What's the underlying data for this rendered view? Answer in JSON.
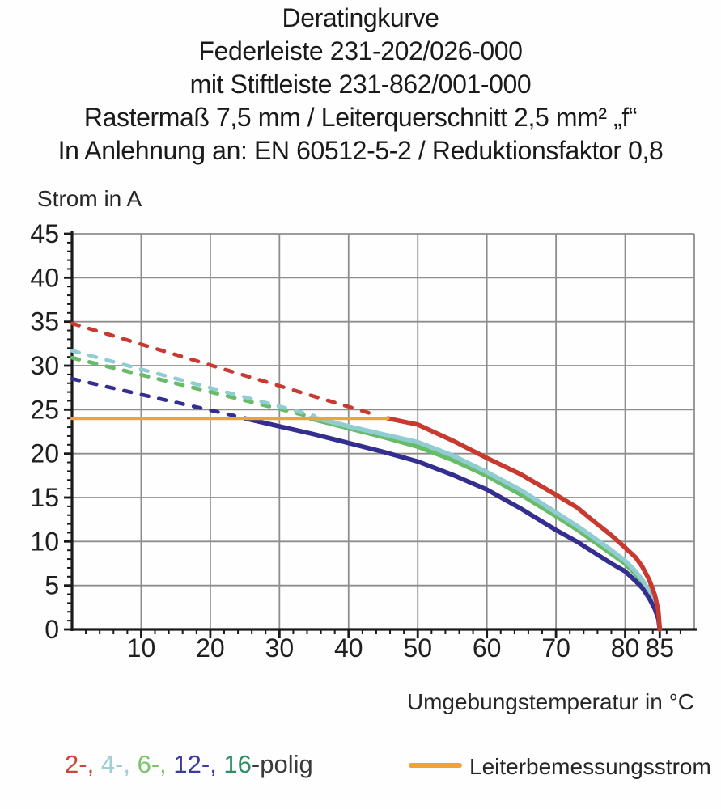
{
  "header": {
    "lines": [
      "Deratingkurve",
      "Federleiste 231-202/026-000",
      "mit Stiftleiste 231-862/001-000",
      "Rastermaß 7,5 mm / Leiterquerschnitt 2,5 mm² „f“",
      "In Anlehnung an: EN 60512-5-2 / Reduktionsfaktor 0,8"
    ]
  },
  "legend": {
    "poles_segments": [
      {
        "text": "2-,",
        "color": "#C8473C"
      },
      {
        "text": " 4-,",
        "color": "#9DD0CE"
      },
      {
        "text": " 6-,",
        "color": "#7CC36B"
      },
      {
        "text": " 12-,",
        "color": "#3B3A9E"
      },
      {
        "text": " 16",
        "color": "#2E8F63"
      },
      {
        "text": "-polig",
        "color": "#3A3A3A"
      }
    ],
    "rated_current_label": "Leiterbemessungsstrom",
    "rated_current_color": "#F0A236"
  },
  "colors": {
    "grid": "#8E8E8E",
    "axis": "#1a1a1a",
    "tick_label": "#1f1f1f"
  },
  "chart_data": {
    "type": "line",
    "title": "Deratingkurve",
    "xlabel": "Umgebungstemperatur in °C",
    "ylabel": "Strom in A",
    "xlim": [
      0,
      90
    ],
    "ylim": [
      0,
      45
    ],
    "grid": true,
    "legend_position": "bottom",
    "x_gridlines": [
      10,
      20,
      30,
      40,
      50,
      60,
      70,
      80,
      90
    ],
    "y_gridlines": [
      5,
      10,
      15,
      20,
      25,
      30,
      35,
      40,
      45
    ],
    "x_tick_labels": [
      10,
      20,
      30,
      40,
      50,
      60,
      70,
      80,
      85
    ],
    "y_tick_labels": [
      45,
      40,
      35,
      30,
      25,
      20,
      15,
      10,
      5,
      0
    ],
    "x_minor_step": 2,
    "y_minor_step": 1,
    "rated_current_line": {
      "label": "Leiterbemessungsstrom",
      "value_a": 24,
      "x_start": 0,
      "x_end": 45.7,
      "color": "#F0A236"
    },
    "series": [
      {
        "name": "2-polig",
        "color": "#C8392F",
        "dashed_points": [
          [
            0,
            34.8
          ],
          [
            43.5,
            24.5
          ]
        ],
        "solid_points": [
          [
            45.7,
            24
          ],
          [
            50,
            23.3
          ],
          [
            55,
            21.5
          ],
          [
            60,
            19.5
          ],
          [
            65,
            17.6
          ],
          [
            70,
            15.3
          ],
          [
            73,
            13.9
          ],
          [
            75,
            12.6
          ],
          [
            78,
            10.7
          ],
          [
            80,
            9.3
          ],
          [
            81.5,
            8.2
          ],
          [
            82.5,
            7.1
          ],
          [
            83.5,
            5.6
          ],
          [
            84.3,
            3.9
          ],
          [
            84.8,
            2.1
          ],
          [
            85,
            0
          ]
        ]
      },
      {
        "name": "4-polig",
        "color": "#8FCDD3",
        "dashed_points": [
          [
            0,
            31.7
          ],
          [
            35,
            24.3
          ]
        ],
        "solid_points": [
          [
            35.5,
            24
          ],
          [
            40,
            23.1
          ],
          [
            45,
            22.2
          ],
          [
            50,
            21.3
          ],
          [
            55,
            19.8
          ],
          [
            60,
            17.9
          ],
          [
            65,
            15.8
          ],
          [
            70,
            13.3
          ],
          [
            73,
            11.8
          ],
          [
            75,
            10.7
          ],
          [
            78,
            9.0
          ],
          [
            80,
            7.8
          ],
          [
            81.5,
            6.6
          ],
          [
            82.5,
            5.6
          ],
          [
            83.5,
            4.3
          ],
          [
            84.3,
            2.9
          ],
          [
            84.8,
            1.5
          ],
          [
            85,
            0
          ]
        ]
      },
      {
        "name": "6-polig",
        "color": "#69BC66",
        "dashed_points": [
          [
            0,
            30.9
          ],
          [
            34,
            24.3
          ]
        ],
        "solid_points": [
          [
            34.5,
            24
          ],
          [
            40,
            22.9
          ],
          [
            45,
            21.9
          ],
          [
            50,
            20.8
          ],
          [
            55,
            19.3
          ],
          [
            60,
            17.5
          ],
          [
            65,
            15.3
          ],
          [
            70,
            12.9
          ],
          [
            73,
            11.4
          ],
          [
            75,
            10.3
          ],
          [
            78,
            8.6
          ],
          [
            80,
            7.5
          ],
          [
            81.5,
            6.3
          ],
          [
            82.5,
            5.3
          ],
          [
            83.5,
            4.0
          ],
          [
            84.3,
            2.7
          ],
          [
            84.8,
            1.4
          ],
          [
            85,
            0
          ]
        ]
      },
      {
        "name": "12-polig",
        "color": "#332E90",
        "dashed_points": [
          [
            0,
            28.5
          ],
          [
            23.5,
            24.3
          ]
        ],
        "solid_points": [
          [
            25,
            24
          ],
          [
            30,
            23.1
          ],
          [
            35,
            22.2
          ],
          [
            40,
            21.2
          ],
          [
            45,
            20.2
          ],
          [
            50,
            19.1
          ],
          [
            55,
            17.6
          ],
          [
            60,
            15.9
          ],
          [
            65,
            13.7
          ],
          [
            70,
            11.3
          ],
          [
            73,
            10.0
          ],
          [
            75,
            9.0
          ],
          [
            78,
            7.5
          ],
          [
            80,
            6.6
          ],
          [
            81.5,
            5.5
          ],
          [
            82.5,
            4.7
          ],
          [
            83.5,
            3.5
          ],
          [
            84.3,
            2.3
          ],
          [
            84.8,
            1.2
          ],
          [
            85,
            0
          ]
        ]
      },
      {
        "name": "16-polig",
        "color": "#2E8F63",
        "note": "curve coincides with 6-polig curve in the figure",
        "dashed_points": [
          [
            0,
            30.9
          ],
          [
            34,
            24.3
          ]
        ],
        "solid_points": [
          [
            34.5,
            24
          ],
          [
            40,
            22.9
          ],
          [
            45,
            21.9
          ],
          [
            50,
            20.8
          ],
          [
            55,
            19.3
          ],
          [
            60,
            17.5
          ],
          [
            65,
            15.3
          ],
          [
            70,
            12.9
          ],
          [
            73,
            11.4
          ],
          [
            75,
            10.3
          ],
          [
            78,
            8.6
          ],
          [
            80,
            7.5
          ],
          [
            81.5,
            6.3
          ],
          [
            82.5,
            5.3
          ],
          [
            83.5,
            4.0
          ],
          [
            84.3,
            2.7
          ],
          [
            84.8,
            1.4
          ],
          [
            85,
            0
          ]
        ]
      }
    ]
  }
}
